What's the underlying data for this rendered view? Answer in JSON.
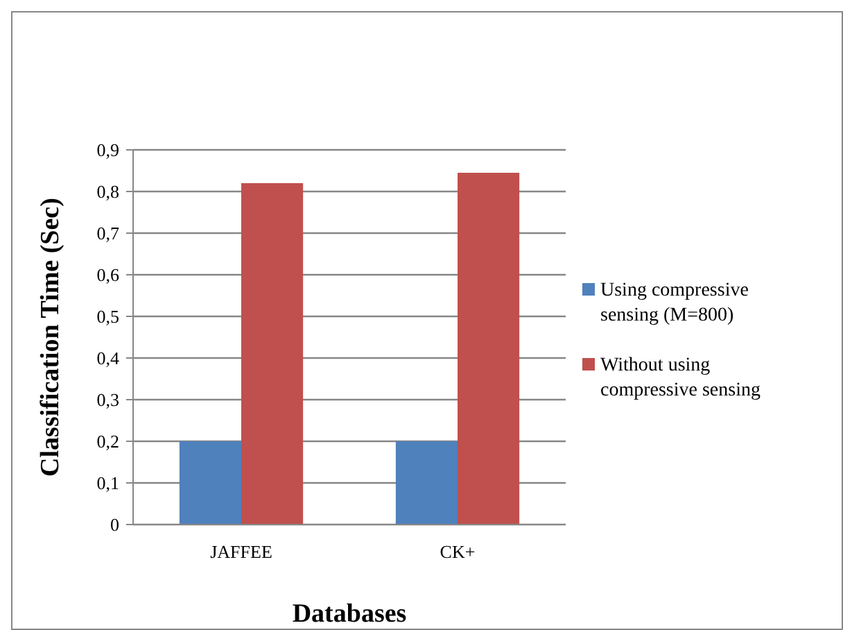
{
  "chart_data": {
    "type": "bar",
    "xlabel": "Databases",
    "ylabel": "Classification Time (Sec)",
    "categories": [
      "JAFFEE",
      "CK+"
    ],
    "series": [
      {
        "name": "Using compressive sensing (M=800)",
        "color": "#4f81bd",
        "values": [
          0.2,
          0.2
        ]
      },
      {
        "name": "Without using compressive sensing",
        "color": "#c0504d",
        "values": [
          0.82,
          0.845
        ]
      }
    ],
    "ylim": [
      0,
      0.9
    ],
    "yticks": [
      0,
      {
        "value": 0.1,
        "label": "0,1"
      },
      {
        "value": 0.2,
        "label": "0,2"
      },
      {
        "value": 0.3,
        "label": "0,3"
      },
      {
        "value": 0.4,
        "label": "0,4"
      },
      {
        "value": 0.5,
        "label": "0,5"
      },
      {
        "value": 0.6,
        "label": "0,6"
      },
      {
        "value": 0.7,
        "label": "0,7"
      },
      {
        "value": 0.8,
        "label": "0,8"
      },
      {
        "value": 0.9,
        "label": "0,9"
      }
    ],
    "grid": "y",
    "legend": "right"
  }
}
